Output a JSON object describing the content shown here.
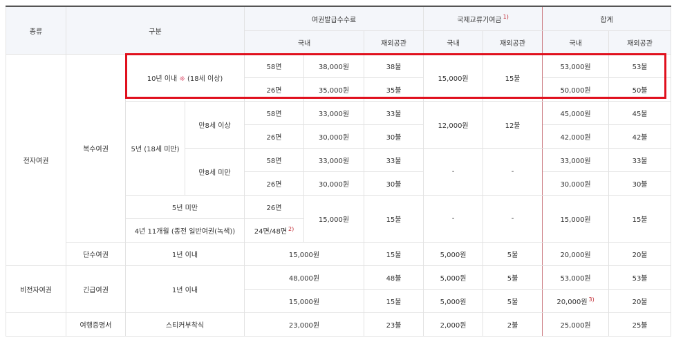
{
  "header": {
    "type": "종류",
    "category": "구분",
    "issuance_fee": "여권발급수수료",
    "intl_fund": "국제교류기여금",
    "intl_fund_note": "1)",
    "total": "합계",
    "domestic": "국내",
    "overseas": "재외공관"
  },
  "groups": {
    "electronic": "전자여권",
    "multiple": "복수여권",
    "single": "단수여권",
    "non_electronic": "비전자여권",
    "emergency": "긴급여권",
    "travel_cert": "여행증명서"
  },
  "labels": {
    "ten_year_a": "10년 이내",
    "ten_year_star": "※",
    "ten_year_b": "(18세 이상)",
    "five_year": "5년 (18세 미만)",
    "age8_over": "만8세 이상",
    "age8_under": "만8세 미만",
    "under5": "5년 미만",
    "four_year": "4년 11개월 (종전 일반여권(녹색))",
    "one_year": "1년 이내",
    "sticker": "스티커부착식"
  },
  "rows": {
    "r1": {
      "pages": "58면",
      "fee": "38,000원",
      "fee_ov": "38불",
      "fund": "15,000원",
      "fund_ov": "15불",
      "total": "53,000원",
      "total_ov": "53불"
    },
    "r2": {
      "pages": "26면",
      "fee": "35,000원",
      "fee_ov": "35불",
      "total": "50,000원",
      "total_ov": "50불"
    },
    "r3": {
      "pages": "58면",
      "fee": "33,000원",
      "fee_ov": "33불",
      "fund": "12,000원",
      "fund_ov": "12불",
      "total": "45,000원",
      "total_ov": "45불"
    },
    "r4": {
      "pages": "26면",
      "fee": "30,000원",
      "fee_ov": "30불",
      "total": "42,000원",
      "total_ov": "42불"
    },
    "r5": {
      "pages": "58면",
      "fee": "33,000원",
      "fee_ov": "33불",
      "fund": "-",
      "fund_ov": "-",
      "total": "33,000원",
      "total_ov": "33불"
    },
    "r6": {
      "pages": "26면",
      "fee": "30,000원",
      "fee_ov": "30불",
      "total": "30,000원",
      "total_ov": "30불"
    },
    "r7": {
      "pages": "26면",
      "fee": "15,000원",
      "fee_ov": "15불",
      "fund": "-",
      "fund_ov": "-",
      "total": "15,000원",
      "total_ov": "15불"
    },
    "r8": {
      "pages": "24면/48면",
      "pages_note": "2)"
    },
    "r9": {
      "fee": "15,000원",
      "fee_ov": "15불",
      "fund": "5,000원",
      "fund_ov": "5불",
      "total": "20,000원",
      "total_ov": "20불"
    },
    "r10": {
      "fee": "48,000원",
      "fee_ov": "48불",
      "fund": "5,000원",
      "fund_ov": "5불",
      "total": "53,000원",
      "total_ov": "53불"
    },
    "r11": {
      "fee": "15,000원",
      "fee_ov": "15불",
      "fund": "5,000원",
      "fund_ov": "5불",
      "total": "20,000원",
      "total_note": "3)",
      "total_ov": "20불"
    },
    "r12": {
      "fee": "23,000원",
      "fee_ov": "23불",
      "fund": "2,000원",
      "fund_ov": "2불",
      "total": "25,000원",
      "total_ov": "25불"
    }
  }
}
